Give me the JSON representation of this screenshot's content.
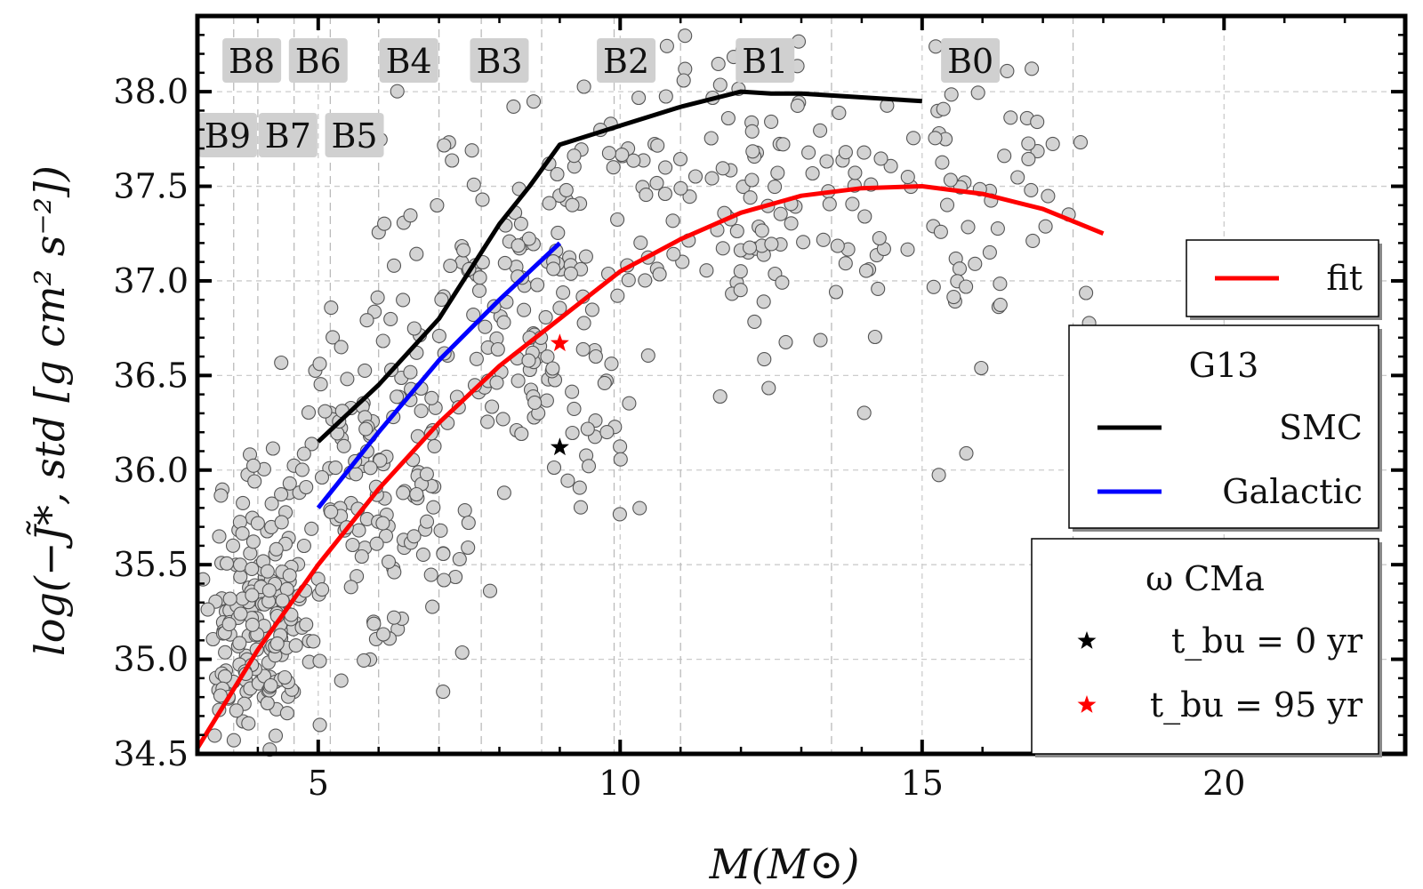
{
  "chart_data": {
    "type": "scatter",
    "xlabel": "M(M⊙)",
    "ylabel": "log(−J̃*, std [g cm² s⁻²])",
    "xlim": [
      3,
      23
    ],
    "ylim": [
      34.5,
      38.4
    ],
    "x_ticks": [
      5,
      10,
      15,
      20
    ],
    "x_tick_labels": [
      "5",
      "10",
      "15",
      "20"
    ],
    "y_ticks": [
      34.5,
      35.0,
      35.5,
      36.0,
      36.5,
      37.0,
      37.5,
      38.0
    ],
    "y_tick_labels": [
      "34.5",
      "35.0",
      "35.5",
      "36.0",
      "36.5",
      "37.0",
      "37.5",
      "38.0"
    ],
    "grid": true,
    "spectral_types": [
      {
        "label": "B9",
        "mass": 3.5,
        "row": 2
      },
      {
        "label": "B8",
        "mass": 3.9,
        "row": 1
      },
      {
        "label": "B7",
        "mass": 4.5,
        "row": 2
      },
      {
        "label": "B6",
        "mass": 5.0,
        "row": 1
      },
      {
        "label": "B5",
        "mass": 5.6,
        "row": 2
      },
      {
        "label": "B4",
        "mass": 6.5,
        "row": 1
      },
      {
        "label": "B3",
        "mass": 8.0,
        "row": 1
      },
      {
        "label": "B2",
        "mass": 10.1,
        "row": 1
      },
      {
        "label": "B1",
        "mass": 12.4,
        "row": 1
      },
      {
        "label": "B0",
        "mass": 15.8,
        "row": 1
      }
    ],
    "spectral_type_gridlines": [
      3.6,
      4.0,
      4.6,
      5.2,
      6.0,
      7.0,
      7.7,
      8.7,
      9.9,
      11.0,
      13.5,
      17.5
    ],
    "series": [
      {
        "name": "fit",
        "kind": "line",
        "color": "#ff0000",
        "x": [
          3.0,
          4.0,
          5.0,
          6.0,
          7.0,
          8.0,
          9.0,
          10.0,
          11.0,
          12.0,
          13.0,
          14.0,
          15.0,
          16.0,
          17.0,
          18.0
        ],
        "y": [
          34.53,
          35.05,
          35.5,
          35.9,
          36.25,
          36.55,
          36.8,
          37.05,
          37.22,
          37.36,
          37.45,
          37.49,
          37.5,
          37.46,
          37.38,
          37.25
        ]
      },
      {
        "name": "SMC",
        "kind": "line",
        "color": "#000000",
        "group": "G13",
        "x": [
          5.0,
          6.0,
          7.0,
          8.0,
          8.5,
          9.0,
          10.0,
          11.0,
          12.0,
          12.5,
          13.0,
          14.0,
          15.0
        ],
        "y": [
          36.15,
          36.45,
          36.8,
          37.3,
          37.5,
          37.72,
          37.82,
          37.92,
          38.0,
          37.99,
          37.99,
          37.97,
          37.95
        ]
      },
      {
        "name": "Galactic",
        "kind": "line",
        "color": "#0000ff",
        "group": "G13",
        "x": [
          5.0,
          6.0,
          7.0,
          8.0,
          9.0
        ],
        "y": [
          35.8,
          36.2,
          36.58,
          36.9,
          37.2
        ]
      },
      {
        "name": "t_bu = 0 yr",
        "kind": "star",
        "color": "#000000",
        "group": "ω CMa",
        "x": [
          9.0
        ],
        "y": [
          36.12
        ]
      },
      {
        "name": "t_bu = 95 yr",
        "kind": "star",
        "color": "#ff0000",
        "group": "ω CMa",
        "x": [
          9.0
        ],
        "y": [
          36.67
        ]
      },
      {
        "name": "sample stars",
        "kind": "scatter",
        "color": "#d3d3d3",
        "clusters": [
          {
            "x_mean": 4.0,
            "x_sd": 0.5,
            "y_mean": 35.2,
            "y_sd": 0.32,
            "count": 190
          },
          {
            "x_mean": 5.8,
            "x_sd": 0.8,
            "y_mean": 35.9,
            "y_sd": 0.42,
            "count": 150
          },
          {
            "x_mean": 8.3,
            "x_sd": 1.1,
            "y_mean": 36.75,
            "y_sd": 0.42,
            "count": 130
          },
          {
            "x_mean": 12.0,
            "x_sd": 2.2,
            "y_mean": 37.4,
            "y_sd": 0.45,
            "count": 190
          },
          {
            "x_mean": 16.0,
            "x_sd": 1.2,
            "y_mean": 37.45,
            "y_sd": 0.45,
            "count": 45
          }
        ]
      }
    ],
    "legends": [
      {
        "title": "",
        "entries": [
          {
            "label": "fit",
            "kind": "line",
            "color": "#ff0000"
          }
        ]
      },
      {
        "title": "G13",
        "entries": [
          {
            "label": "SMC",
            "kind": "line",
            "color": "#000000"
          },
          {
            "label": "Galactic",
            "kind": "line",
            "color": "#0000ff"
          }
        ]
      },
      {
        "title": "ω CMa",
        "entries": [
          {
            "label": "t_bu = 0 yr",
            "kind": "star",
            "color": "#000000"
          },
          {
            "label": "t_bu = 95 yr",
            "kind": "star",
            "color": "#ff0000"
          }
        ]
      }
    ],
    "legend_placement": "right"
  }
}
